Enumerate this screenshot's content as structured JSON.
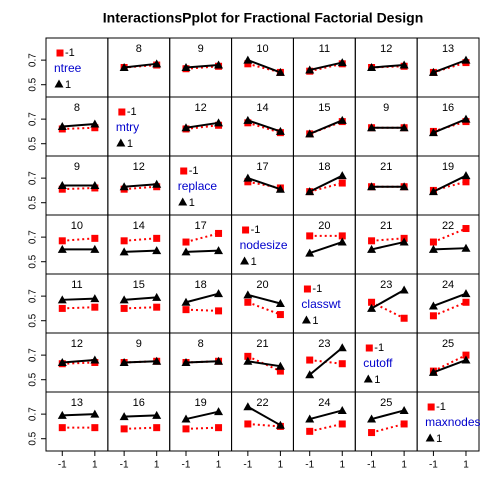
{
  "chart_data": {
    "type": "interaction",
    "title": "InteractionsPplot for Fractional Factorial Design",
    "factors": [
      "ntree",
      "mtry",
      "replace",
      "nodesize",
      "classwt",
      "cutoff",
      "maxnodes"
    ],
    "series": [
      {
        "name": "-1",
        "color": "#ff0000"
      },
      {
        "name": "1",
        "color": "#000000"
      }
    ],
    "xlim": [
      -2,
      1.8
    ],
    "xticks": [
      -1,
      1
    ],
    "ylim": [
      0.4,
      0.88
    ],
    "yticks": [
      0.5,
      0.7
    ],
    "cells": [
      [
        null,
        {
          "label": "8",
          "values": [
            [
              0.64,
              0.66
            ],
            [
              0.64,
              0.67
            ]
          ]
        },
        {
          "label": "9",
          "values": [
            [
              0.63,
              0.65
            ],
            [
              0.64,
              0.66
            ]
          ]
        },
        {
          "label": "10",
          "values": [
            [
              0.67,
              0.6
            ],
            [
              0.7,
              0.6
            ]
          ]
        },
        {
          "label": "11",
          "values": [
            [
              0.61,
              0.67
            ],
            [
              0.62,
              0.68
            ]
          ]
        },
        {
          "label": "12",
          "values": [
            [
              0.64,
              0.65
            ],
            [
              0.64,
              0.66
            ]
          ]
        },
        {
          "label": "13",
          "values": [
            [
              0.6,
              0.68
            ],
            [
              0.6,
              0.7
            ]
          ]
        }
      ],
      [
        {
          "label": "8",
          "values": [
            [
              0.62,
              0.63
            ],
            [
              0.64,
              0.66
            ]
          ]
        },
        null,
        {
          "label": "12",
          "values": [
            [
              0.62,
              0.65
            ],
            [
              0.63,
              0.67
            ]
          ]
        },
        {
          "label": "14",
          "values": [
            [
              0.67,
              0.59
            ],
            [
              0.69,
              0.6
            ]
          ]
        },
        {
          "label": "15",
          "values": [
            [
              0.58,
              0.68
            ],
            [
              0.58,
              0.69
            ]
          ]
        },
        {
          "label": "9",
          "values": [
            [
              0.63,
              0.63
            ],
            [
              0.63,
              0.63
            ]
          ]
        },
        {
          "label": "16",
          "values": [
            [
              0.6,
              0.68
            ],
            [
              0.59,
              0.7
            ]
          ]
        }
      ],
      [
        {
          "label": "9",
          "values": [
            [
              0.61,
              0.62
            ],
            [
              0.64,
              0.64
            ]
          ]
        },
        {
          "label": "12",
          "values": [
            [
              0.61,
              0.63
            ],
            [
              0.63,
              0.65
            ]
          ]
        },
        null,
        {
          "label": "17",
          "values": [
            [
              0.67,
              0.62
            ],
            [
              0.7,
              0.61
            ]
          ]
        },
        {
          "label": "18",
          "values": [
            [
              0.59,
              0.66
            ],
            [
              0.59,
              0.72
            ]
          ]
        },
        {
          "label": "21",
          "values": [
            [
              0.63,
              0.63
            ],
            [
              0.63,
              0.63
            ]
          ]
        },
        {
          "label": "19",
          "values": [
            [
              0.6,
              0.67
            ],
            [
              0.59,
              0.72
            ]
          ]
        }
      ],
      [
        {
          "label": "10",
          "values": [
            [
              0.67,
              0.69
            ],
            [
              0.6,
              0.6
            ]
          ]
        },
        {
          "label": "14",
          "values": [
            [
              0.67,
              0.69
            ],
            [
              0.58,
              0.59
            ]
          ]
        },
        {
          "label": "17",
          "values": [
            [
              0.66,
              0.73
            ],
            [
              0.58,
              0.59
            ]
          ]
        },
        null,
        {
          "label": "20",
          "values": [
            [
              0.71,
              0.71
            ],
            [
              0.57,
              0.66
            ]
          ]
        },
        {
          "label": "21",
          "values": [
            [
              0.67,
              0.69
            ],
            [
              0.6,
              0.66
            ]
          ]
        },
        {
          "label": "22",
          "values": [
            [
              0.66,
              0.77
            ],
            [
              0.6,
              0.61
            ]
          ]
        }
      ],
      [
        {
          "label": "11",
          "values": [
            [
              0.6,
              0.61
            ],
            [
              0.67,
              0.68
            ]
          ]
        },
        {
          "label": "15",
          "values": [
            [
              0.6,
              0.61
            ],
            [
              0.67,
              0.69
            ]
          ]
        },
        {
          "label": "18",
          "values": [
            [
              0.59,
              0.58
            ],
            [
              0.65,
              0.72
            ]
          ]
        },
        {
          "label": "20",
          "values": [
            [
              0.65,
              0.55
            ],
            [
              0.71,
              0.64
            ]
          ]
        },
        null,
        {
          "label": "23",
          "values": [
            [
              0.65,
              0.52
            ],
            [
              0.6,
              0.75
            ]
          ]
        },
        {
          "label": "24",
          "values": [
            [
              0.54,
              0.65
            ],
            [
              0.62,
              0.72
            ]
          ]
        }
      ],
      [
        {
          "label": "12",
          "values": [
            [
              0.63,
              0.64
            ],
            [
              0.64,
              0.66
            ]
          ]
        },
        {
          "label": "9",
          "values": [
            [
              0.64,
              0.65
            ],
            [
              0.64,
              0.65
            ]
          ]
        },
        {
          "label": "8",
          "values": [
            [
              0.64,
              0.65
            ],
            [
              0.64,
              0.65
            ]
          ]
        },
        {
          "label": "21",
          "values": [
            [
              0.69,
              0.57
            ],
            [
              0.65,
              0.61
            ]
          ]
        },
        {
          "label": "23",
          "values": [
            [
              0.66,
              0.63
            ],
            [
              0.54,
              0.76
            ]
          ]
        },
        null,
        {
          "label": "25",
          "values": [
            [
              0.57,
              0.7
            ],
            [
              0.56,
              0.66
            ]
          ]
        }
      ],
      [
        {
          "label": "13",
          "values": [
            [
              0.59,
              0.59
            ],
            [
              0.69,
              0.7
            ]
          ]
        },
        {
          "label": "16",
          "values": [
            [
              0.58,
              0.59
            ],
            [
              0.68,
              0.69
            ]
          ]
        },
        {
          "label": "19",
          "values": [
            [
              0.58,
              0.59
            ],
            [
              0.66,
              0.72
            ]
          ]
        },
        {
          "label": "22",
          "values": [
            [
              0.62,
              0.6
            ],
            [
              0.76,
              0.61
            ]
          ]
        },
        {
          "label": "24",
          "values": [
            [
              0.56,
              0.62
            ],
            [
              0.66,
              0.73
            ]
          ]
        },
        {
          "label": "25",
          "values": [
            [
              0.55,
              0.62
            ],
            [
              0.66,
              0.73
            ]
          ]
        },
        null
      ]
    ]
  }
}
